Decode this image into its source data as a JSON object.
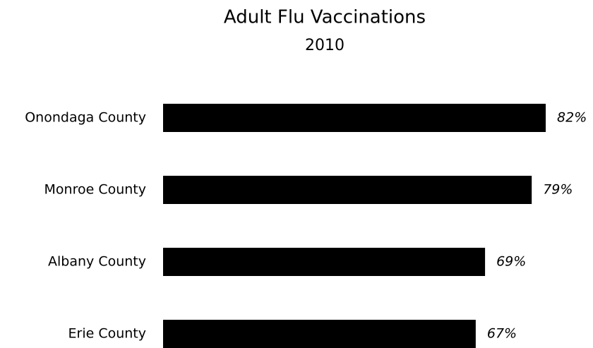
{
  "chart_data": {
    "type": "bar",
    "orientation": "horizontal",
    "title": "Adult Flu Vaccinations",
    "subtitle": "2010",
    "categories": [
      "Onondaga County",
      "Monroe County",
      "Albany County",
      "Erie County"
    ],
    "values": [
      82,
      79,
      69,
      67
    ],
    "value_labels": [
      "82%",
      "79%",
      "69%",
      "67%"
    ],
    "color": "#000000"
  }
}
